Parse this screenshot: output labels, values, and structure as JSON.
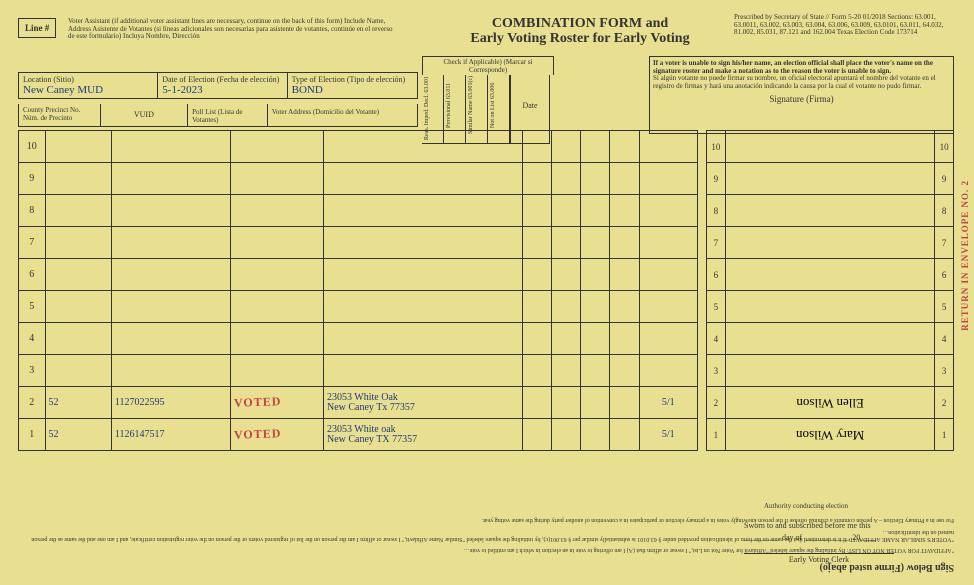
{
  "title_line1": "COMBINATION FORM and",
  "title_line2": "Early Voting Roster for Early Voting",
  "prescribed": "Prescribed by Secretary of State // Form 5-20    01/2018\nSections: 63.001, 63.0011, 63.002, 63.003, 63.004, 63.006, 63.009, 63.0101, 63.011, 64.032, 81.002, 85.031, 87.121 and 162.004 Texas Election Code\n173714",
  "line_hash": "Line #",
  "assistant_note": "Voter Assistant (if additional voter assistant lines are necessary, continue on the back of this form) Include Name, Address\nAsistente de Votantes (si líneas adicionales son necesarias para asistente de votantes, continúe en el reverso de este formulario)\nIncluya Nombre, Dirección",
  "location_label": "Location (Sitio)",
  "location_value": "New Caney MUD",
  "date_label": "Date of Election (Fecha de elección)",
  "date_value": "5-1-2023",
  "type_label": "Type of Election (Tipo de elección)",
  "type_value": "BOND",
  "hdr_precinct": "County Precinct No.\nNúm. de Precinto",
  "hdr_vuid": "VUID",
  "hdr_poll": "Poll List (Lista de Votantes)",
  "hdr_addr": "Voter Address (Domicilio del Votante)",
  "check_if": "Check if Applicable) (Marcar si Corresponde)",
  "vh1": "Reas. Imped. Decl. 63.001 (i)",
  "vh2": "Provisional 63.011",
  "vh3": "Similar Name 63.001(c)",
  "vh4": "Not on List 63.006",
  "date_hdr": "Date",
  "sig_instruction": "If a voter is unable to sign his/her name, an election official shall place the voter's name on the signature roster and make a notation as to the reason the voter is unable to sign.",
  "sig_instruction_es": "Si algún votante no puede firmar su nombre, un oficial electoral apuntará el nombre del votante en el registro de firmas y hará una anotación indicando la causa por la cual el votante no pudo firmar.",
  "sig_label": "Signature (Firma)",
  "rows": [
    {
      "n": "10",
      "p": "",
      "v": "",
      "pl": "",
      "a": "",
      "d": ""
    },
    {
      "n": "9",
      "p": "",
      "v": "",
      "pl": "",
      "a": "",
      "d": ""
    },
    {
      "n": "8",
      "p": "",
      "v": "",
      "pl": "",
      "a": "",
      "d": ""
    },
    {
      "n": "7",
      "p": "",
      "v": "",
      "pl": "",
      "a": "",
      "d": ""
    },
    {
      "n": "6",
      "p": "",
      "v": "",
      "pl": "",
      "a": "",
      "d": ""
    },
    {
      "n": "5",
      "p": "",
      "v": "",
      "pl": "",
      "a": "",
      "d": ""
    },
    {
      "n": "4",
      "p": "",
      "v": "",
      "pl": "",
      "a": "",
      "d": ""
    },
    {
      "n": "3",
      "p": "",
      "v": "",
      "pl": "",
      "a": "",
      "d": ""
    },
    {
      "n": "2",
      "p": "52",
      "v": "1127022595",
      "pl": "VOTED",
      "a": "23053 White Oak\nNew Caney Tx 77357",
      "d": "5/1"
    },
    {
      "n": "1",
      "p": "52",
      "v": "1126147517",
      "pl": "VOTED",
      "a": "23053 White oak\nNew Caney TX 77357",
      "d": "5/1"
    }
  ],
  "sigrows": [
    {
      "n": "10",
      "s": ""
    },
    {
      "n": "9",
      "s": ""
    },
    {
      "n": "8",
      "s": ""
    },
    {
      "n": "7",
      "s": ""
    },
    {
      "n": "6",
      "s": ""
    },
    {
      "n": "5",
      "s": ""
    },
    {
      "n": "4",
      "s": ""
    },
    {
      "n": "3",
      "s": ""
    },
    {
      "n": "2",
      "s": "Ellen Wilson"
    },
    {
      "n": "1",
      "s": "Mary Wilson"
    }
  ],
  "sign_below": "Sign Below (Firme usted abajo)",
  "affidavit1": "\"AFFIDAVIT FOR VOTER NOT ON LIST: By initialing the square labeled \"Affidavit for Voter Not on List,\" I swear or affirm that (A) I am offering to vote in an election in which I am entitled to vote…",
  "affidavit2": "\"VOTER'S SIMILAR NAME AFFIDAVIT: If it is determined that the name on the form of identification provided under § 63.0101 is substantially similar per § 63.001(c), by initialing the square labeled \"Similar Name Affidavit,\" I swear or affirm I am the person on the list of registered voters or the person on the voter registration certificate, and I am one and the same as the person named on the identification…",
  "affidavit3": "For use in a Primary Election – A person commits a criminal offense if the person knowingly votes in a primary election or participates in a convention of another party during the same voting year.",
  "sworn": "Sworn to and subscribed before me this",
  "sworn_day": "_________ day of ___________, 20____",
  "clerk": "Early Voting Clerk",
  "auth": "Authority conducting election",
  "return_env": "RETURN IN ENVELOPE NO. 2"
}
